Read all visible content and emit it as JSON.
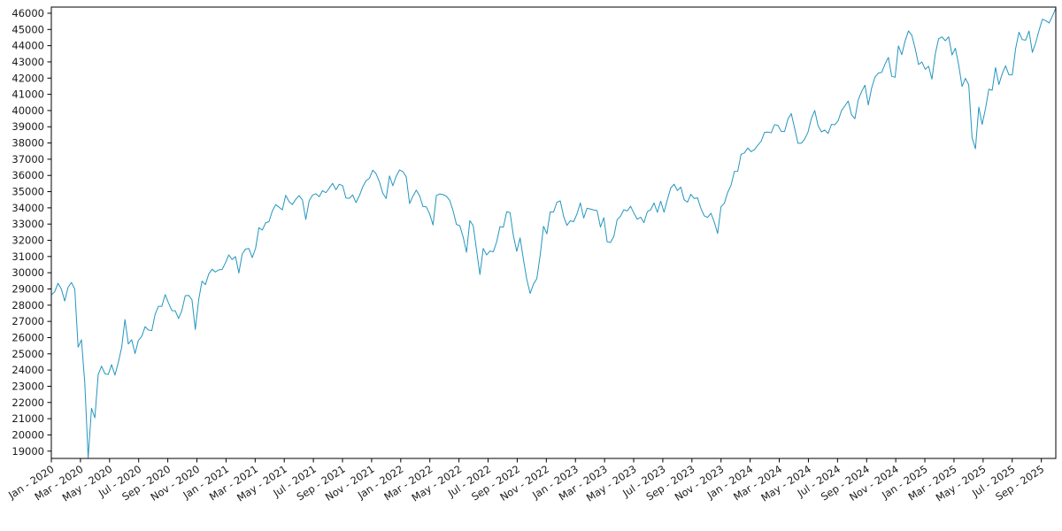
{
  "chart_data": {
    "type": "line",
    "title": "",
    "grid": false,
    "legend": "none",
    "line_color": "#2596be",
    "frame_color": "#000000",
    "ylim": [
      18550,
      46380
    ],
    "y_ticks": [
      19000,
      20000,
      21000,
      22000,
      23000,
      24000,
      25000,
      26000,
      27000,
      28000,
      29000,
      30000,
      31000,
      32000,
      33000,
      34000,
      35000,
      36000,
      37000,
      38000,
      39000,
      40000,
      41000,
      42000,
      43000,
      44000,
      45000,
      46000
    ],
    "x_tick_labels": [
      "Jan - 2020",
      "Mar - 2020",
      "May - 2020",
      "Jul - 2020",
      "Sep - 2020",
      "Nov - 2020",
      "Jan - 2021",
      "Mar - 2021",
      "May - 2021",
      "Jul - 2021",
      "Sep - 2021",
      "Nov - 2021",
      "Jan - 2022",
      "Mar - 2022",
      "May - 2022",
      "Jul - 2022",
      "Sep - 2022",
      "Nov - 2022",
      "Jan - 2023",
      "Mar - 2023",
      "May - 2023",
      "Jul - 2023",
      "Sep - 2023",
      "Nov - 2023",
      "Jan - 2024",
      "Mar - 2024",
      "May - 2024",
      "Jul - 2024",
      "Sep - 2024",
      "Nov - 2024",
      "Jan - 2025",
      "Mar - 2025",
      "May - 2025",
      "Jul - 2025",
      "Sep - 2025"
    ],
    "x_tick_interval_months": 2,
    "weeks_per_point": 1,
    "weekly_values": [
      28635,
      28824,
      29348,
      28990,
      28256,
      29103,
      29398,
      28992,
      25409,
      25865,
      23186,
      18592,
      21637,
      21053,
      23719,
      24242,
      23775,
      23724,
      24331,
      23685,
      24465,
      25383,
      27111,
      25606,
      25871,
      25016,
      25827,
      26075,
      26672,
      26470,
      26428,
      27433,
      27931,
      27930,
      28654,
      28133,
      27666,
      27657,
      27174,
      27683,
      28587,
      28606,
      28336,
      26502,
      28323,
      29480,
      29263,
      29910,
      30218,
      30046,
      30179,
      30200,
      30606,
      31098,
      30814,
      30997,
      29983,
      31148,
      31458,
      31494,
      30932,
      31496,
      32779,
      32628,
      33073,
      33153,
      33801,
      34201,
      34043,
      33875,
      34778,
      34382,
      34208,
      34529,
      34756,
      34480,
      33290,
      34434,
      34786,
      34870,
      34688,
      35062,
      34935,
      35209,
      35515,
      35120,
      35456,
      35369,
      34608,
      34585,
      34798,
      34326,
      34746,
      35295,
      35677,
      35820,
      36328,
      36100,
      35602,
      34899,
      34580,
      35971,
      35365,
      35950,
      36338,
      36232,
      35912,
      34265,
      34725,
      35090,
      34738,
      34079,
      34059,
      33615,
      32944,
      34755,
      34861,
      34818,
      34721,
      34451,
      33811,
      32977,
      32899,
      32197,
      31262,
      33213,
      32900,
      31393,
      29889,
      31501,
      31097,
      31338,
      31288,
      31899,
      32845,
      32803,
      33761,
      33707,
      32283,
      31318,
      32152,
      30822,
      29590,
      28726,
      29297,
      29635,
      31083,
      32862,
      32403,
      33748,
      33746,
      34347,
      34429,
      33476,
      32920,
      33204,
      33147,
      33631,
      34303,
      33375,
      33978,
      33926,
      33869,
      33827,
      32817,
      33391,
      31910,
      31862,
      32238,
      33274,
      33485,
      33886,
      33809,
      34098,
      33675,
      33300,
      33427,
      33093,
      33763,
      33877,
      34299,
      33727,
      34408,
      33735,
      34509,
      35228,
      35459,
      35066,
      35281,
      34501,
      34347,
      34838,
      34577,
      34618,
      33964,
      33508,
      33408,
      33670,
      33127,
      32418,
      34061,
      34283,
      34947,
      35390,
      36246,
      36248,
      37306,
      37386,
      37690,
      37466,
      37593,
      37864,
      38109,
      38654,
      38672,
      38628,
      39132,
      39087,
      38723,
      38715,
      39476,
      39807,
      38904,
      37983,
      37986,
      38240,
      38676,
      39513,
      40004,
      39069,
      38686,
      38799,
      38589,
      39150,
      39119,
      39376,
      40001,
      40288,
      40589,
      39737,
      39497,
      40660,
      41175,
      41563,
      40345,
      41394,
      42063,
      42313,
      42353,
      42864,
      43276,
      42114,
      42052,
      43989,
      43445,
      44297,
      44911,
      44643,
      43828,
      42840,
      42992,
      42544,
      42732,
      41938,
      43488,
      44424,
      44545,
      44303,
      44546,
      43428,
      43841,
      42802,
      41488,
      41985,
      41583,
      38315,
      37646,
      40213,
      39142,
      40114,
      41317,
      41249,
      42655,
      41603,
      42270,
      42763,
      42198,
      42207,
      43819,
      44829,
      44372,
      44342,
      44902,
      43589,
      44176,
      44946,
      45632,
      45545,
      45401,
      45834,
      46315
    ]
  }
}
